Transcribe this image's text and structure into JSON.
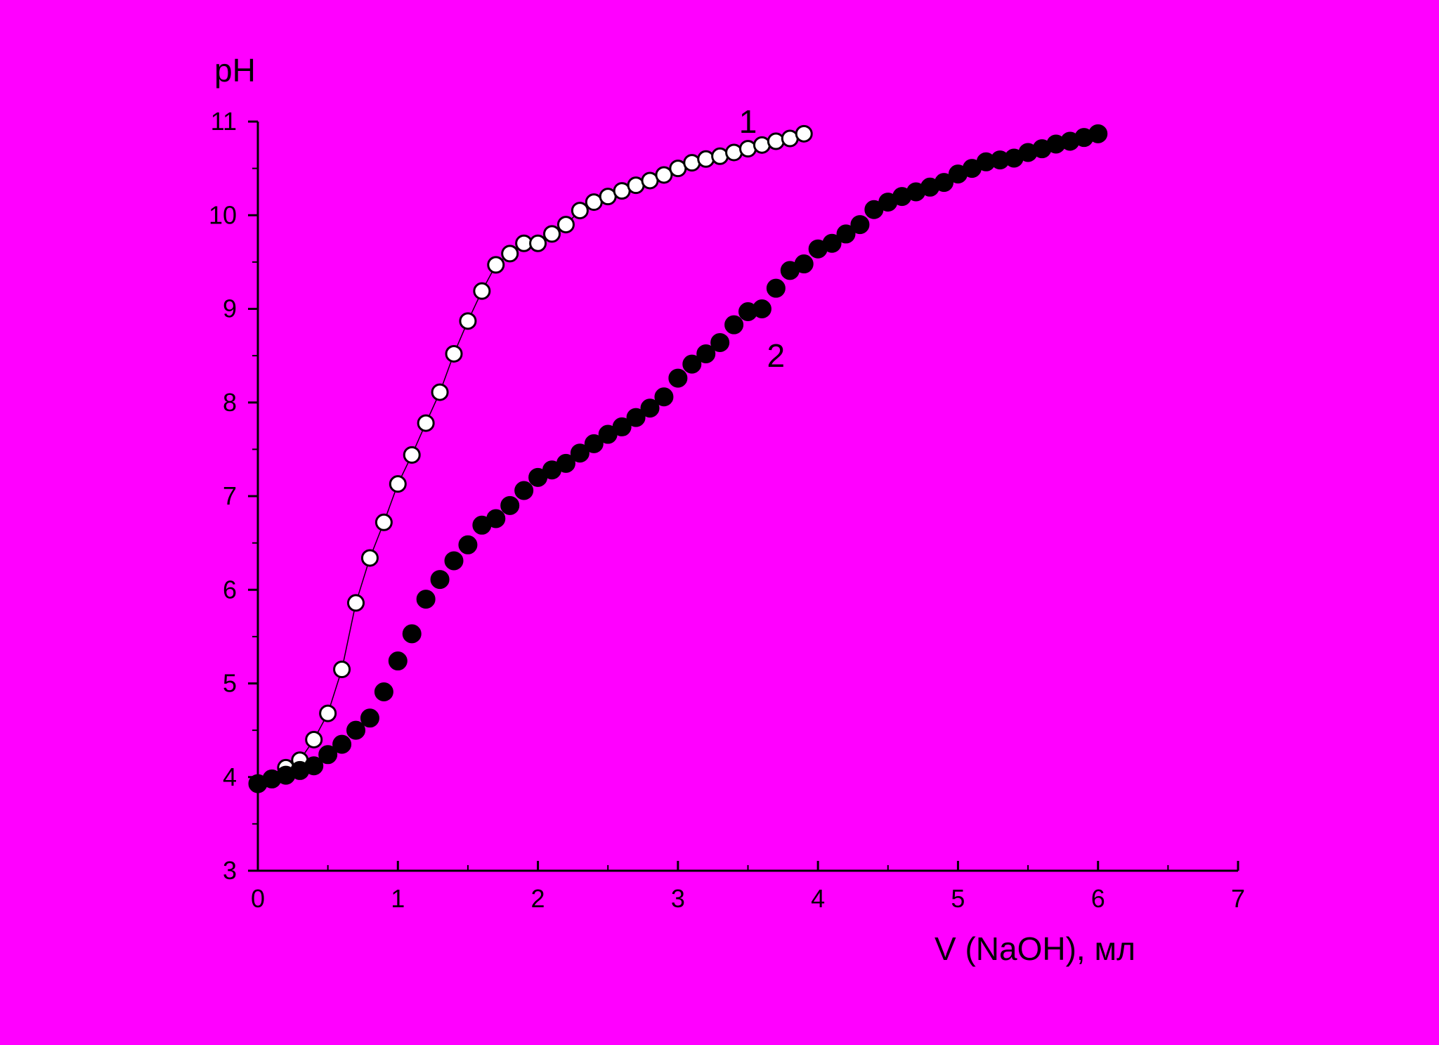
{
  "colors": {
    "background": "#ff00ff",
    "axis": "#000000",
    "marker_filled": "#000000",
    "marker_open_fill": "#ffffff"
  },
  "chart_data": {
    "type": "scatter",
    "title": "",
    "xlabel": "V (NaOH), мл",
    "ylabel": "pH",
    "xlim": [
      0,
      7
    ],
    "ylim": [
      3,
      11
    ],
    "x_ticks": [
      "0",
      "1",
      "2",
      "3",
      "4",
      "5",
      "6",
      "7"
    ],
    "y_ticks": [
      "3",
      "4",
      "5",
      "6",
      "7",
      "8",
      "9",
      "10",
      "11"
    ],
    "grid": false,
    "series": [
      {
        "name": "1",
        "marker": "open-circle",
        "line": true,
        "label_at": [
          3.5,
          11.0
        ],
        "x": [
          0.0,
          0.1,
          0.2,
          0.3,
          0.4,
          0.5,
          0.6,
          0.7,
          0.8,
          0.9,
          1.0,
          1.1,
          1.2,
          1.3,
          1.4,
          1.5,
          1.6,
          1.7,
          1.8,
          1.9,
          2.0,
          2.1,
          2.2,
          2.3,
          2.4,
          2.5,
          2.6,
          2.7,
          2.8,
          2.9,
          3.0,
          3.1,
          3.2,
          3.3,
          3.4,
          3.5,
          3.6,
          3.7,
          3.8,
          3.9
        ],
        "y": [
          3.93,
          3.98,
          4.1,
          4.18,
          4.4,
          4.68,
          5.15,
          5.86,
          6.34,
          6.72,
          7.13,
          7.44,
          7.78,
          8.11,
          8.52,
          8.87,
          9.19,
          9.47,
          9.59,
          9.7,
          9.7,
          9.8,
          9.9,
          10.05,
          10.14,
          10.2,
          10.26,
          10.32,
          10.37,
          10.43,
          10.5,
          10.56,
          10.6,
          10.63,
          10.67,
          10.71,
          10.75,
          10.79,
          10.82,
          10.87
        ]
      },
      {
        "name": "2",
        "marker": "filled-circle",
        "line": false,
        "label_at": [
          3.7,
          8.5
        ],
        "x": [
          0.0,
          0.1,
          0.2,
          0.3,
          0.4,
          0.5,
          0.6,
          0.7,
          0.8,
          0.9,
          1.0,
          1.1,
          1.2,
          1.3,
          1.4,
          1.5,
          1.6,
          1.7,
          1.8,
          1.9,
          2.0,
          2.1,
          2.2,
          2.3,
          2.4,
          2.5,
          2.6,
          2.7,
          2.8,
          2.9,
          3.0,
          3.1,
          3.2,
          3.3,
          3.4,
          3.5,
          3.6,
          3.7,
          3.8,
          3.9,
          4.0,
          4.1,
          4.2,
          4.3,
          4.4,
          4.5,
          4.6,
          4.7,
          4.8,
          4.9,
          5.0,
          5.1,
          5.2,
          5.3,
          5.4,
          5.5,
          5.6,
          5.7,
          5.8,
          5.9,
          6.0
        ],
        "y": [
          3.93,
          3.98,
          4.02,
          4.07,
          4.12,
          4.24,
          4.35,
          4.5,
          4.63,
          4.91,
          5.24,
          5.53,
          5.9,
          6.11,
          6.31,
          6.48,
          6.69,
          6.76,
          6.9,
          7.06,
          7.2,
          7.28,
          7.35,
          7.46,
          7.56,
          7.66,
          7.74,
          7.84,
          7.94,
          8.06,
          8.26,
          8.41,
          8.52,
          8.64,
          8.83,
          8.97,
          9.0,
          9.22,
          9.41,
          9.48,
          9.64,
          9.7,
          9.8,
          9.9,
          10.06,
          10.14,
          10.2,
          10.25,
          10.3,
          10.35,
          10.44,
          10.5,
          10.57,
          10.59,
          10.61,
          10.67,
          10.71,
          10.76,
          10.79,
          10.83,
          10.87
        ]
      }
    ]
  }
}
